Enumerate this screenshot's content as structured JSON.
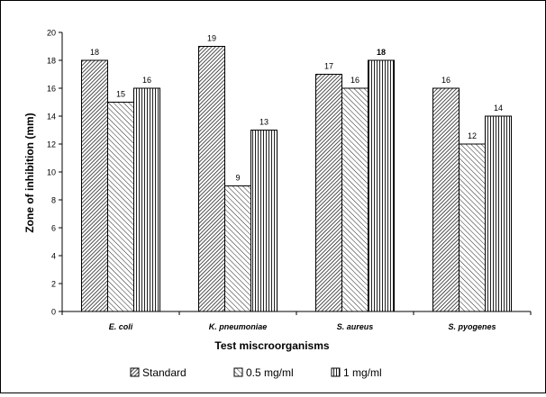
{
  "chart_data": {
    "type": "bar",
    "title": "",
    "xlabel": "Test miscroorganisms",
    "ylabel": "Zone of inhibition (mm)",
    "ylim": [
      0,
      20
    ],
    "yticks": [
      "0",
      "2",
      "4",
      "6",
      "8",
      "10",
      "12",
      "14",
      "16",
      "18",
      "20"
    ],
    "categories": [
      "E. coli",
      "K. pneumoniae",
      "S. aureus",
      "S. pyogenes"
    ],
    "series": [
      {
        "name": "Standard",
        "values": [
          18,
          19,
          17,
          16
        ],
        "labels": [
          "18",
          "19",
          "17",
          "16"
        ],
        "pattern": "dense"
      },
      {
        "name": "0.5 mg/ml",
        "values": [
          15,
          9,
          16,
          12
        ],
        "labels": [
          "15",
          "9",
          "16",
          "12"
        ],
        "pattern": "diagonal"
      },
      {
        "name": "1 mg/ml",
        "values": [
          16,
          13,
          18,
          14
        ],
        "labels": [
          "16",
          "13",
          "18",
          "14"
        ],
        "pattern": "vertical"
      }
    ],
    "bold_labels": [
      [
        2,
        2
      ]
    ],
    "grid": false,
    "legend_position": "bottom"
  }
}
